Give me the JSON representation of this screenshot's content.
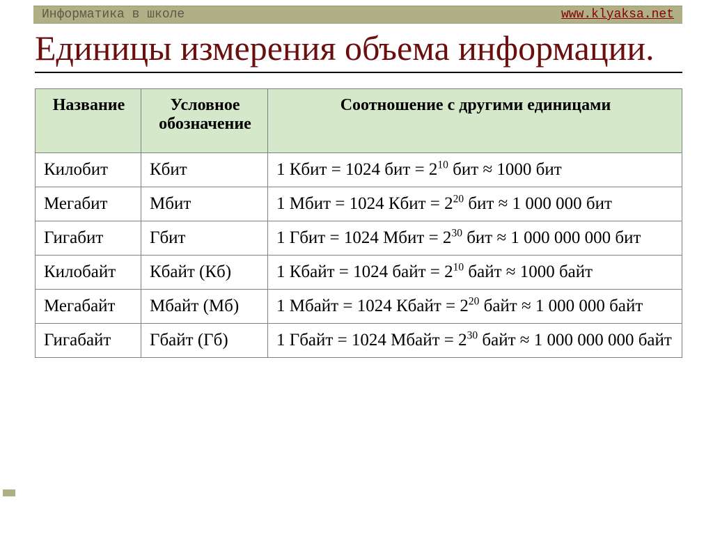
{
  "topbar": {
    "left": "Информатика в школе",
    "right": "www.klyaksa.net",
    "bg_color": "#b0b086"
  },
  "title": "Единицы измерения объема информации.",
  "title_color": "#6b0e0e",
  "title_fontsize": 50,
  "table": {
    "header_bg": "#d6e8ca",
    "border_color": "#808080",
    "cell_fontsize": 25,
    "columns": [
      {
        "label": "Название",
        "width": 152
      },
      {
        "label": "Условное обозначение",
        "width": 182
      },
      {
        "label": "Соотношение с другими единицами",
        "width": null
      }
    ],
    "rows": [
      {
        "name": "Килобит",
        "symbol": "Кбит",
        "rel_pre": "1 Кбит = 1024 бит = 2",
        "exp": "10",
        "rel_mid": " бит ≈ 1000 бит"
      },
      {
        "name": "Мегабит",
        "symbol": "Мбит",
        "rel_pre": "1 Мбит = 1024 Кбит = 2",
        "exp": "20",
        "rel_mid": " бит ≈ 1 000 000 бит"
      },
      {
        "name": "Гигабит",
        "symbol": "Гбит",
        "rel_pre": "1 Гбит = 1024 Мбит = 2",
        "exp": "30",
        "rel_mid": " бит ≈ 1 000 000 000 бит"
      },
      {
        "name": "Килобайт",
        "symbol": "Кбайт (Кб)",
        "rel_pre": "1 Кбайт = 1024 байт = 2",
        "exp": "10",
        "rel_mid": " байт ≈ 1000 байт"
      },
      {
        "name": "Мегабайт",
        "symbol": "Мбайт (Мб)",
        "rel_pre": "1 Мбайт = 1024 Кбайт = 2",
        "exp": "20",
        "rel_mid": " байт ≈ 1 000 000 байт"
      },
      {
        "name": "Гигабайт",
        "symbol": "Гбайт (Гб)",
        "rel_pre": "1 Гбайт = 1024 Мбайт = 2",
        "exp": "30",
        "rel_mid": " байт ≈ 1 000 000 000 байт"
      }
    ]
  }
}
